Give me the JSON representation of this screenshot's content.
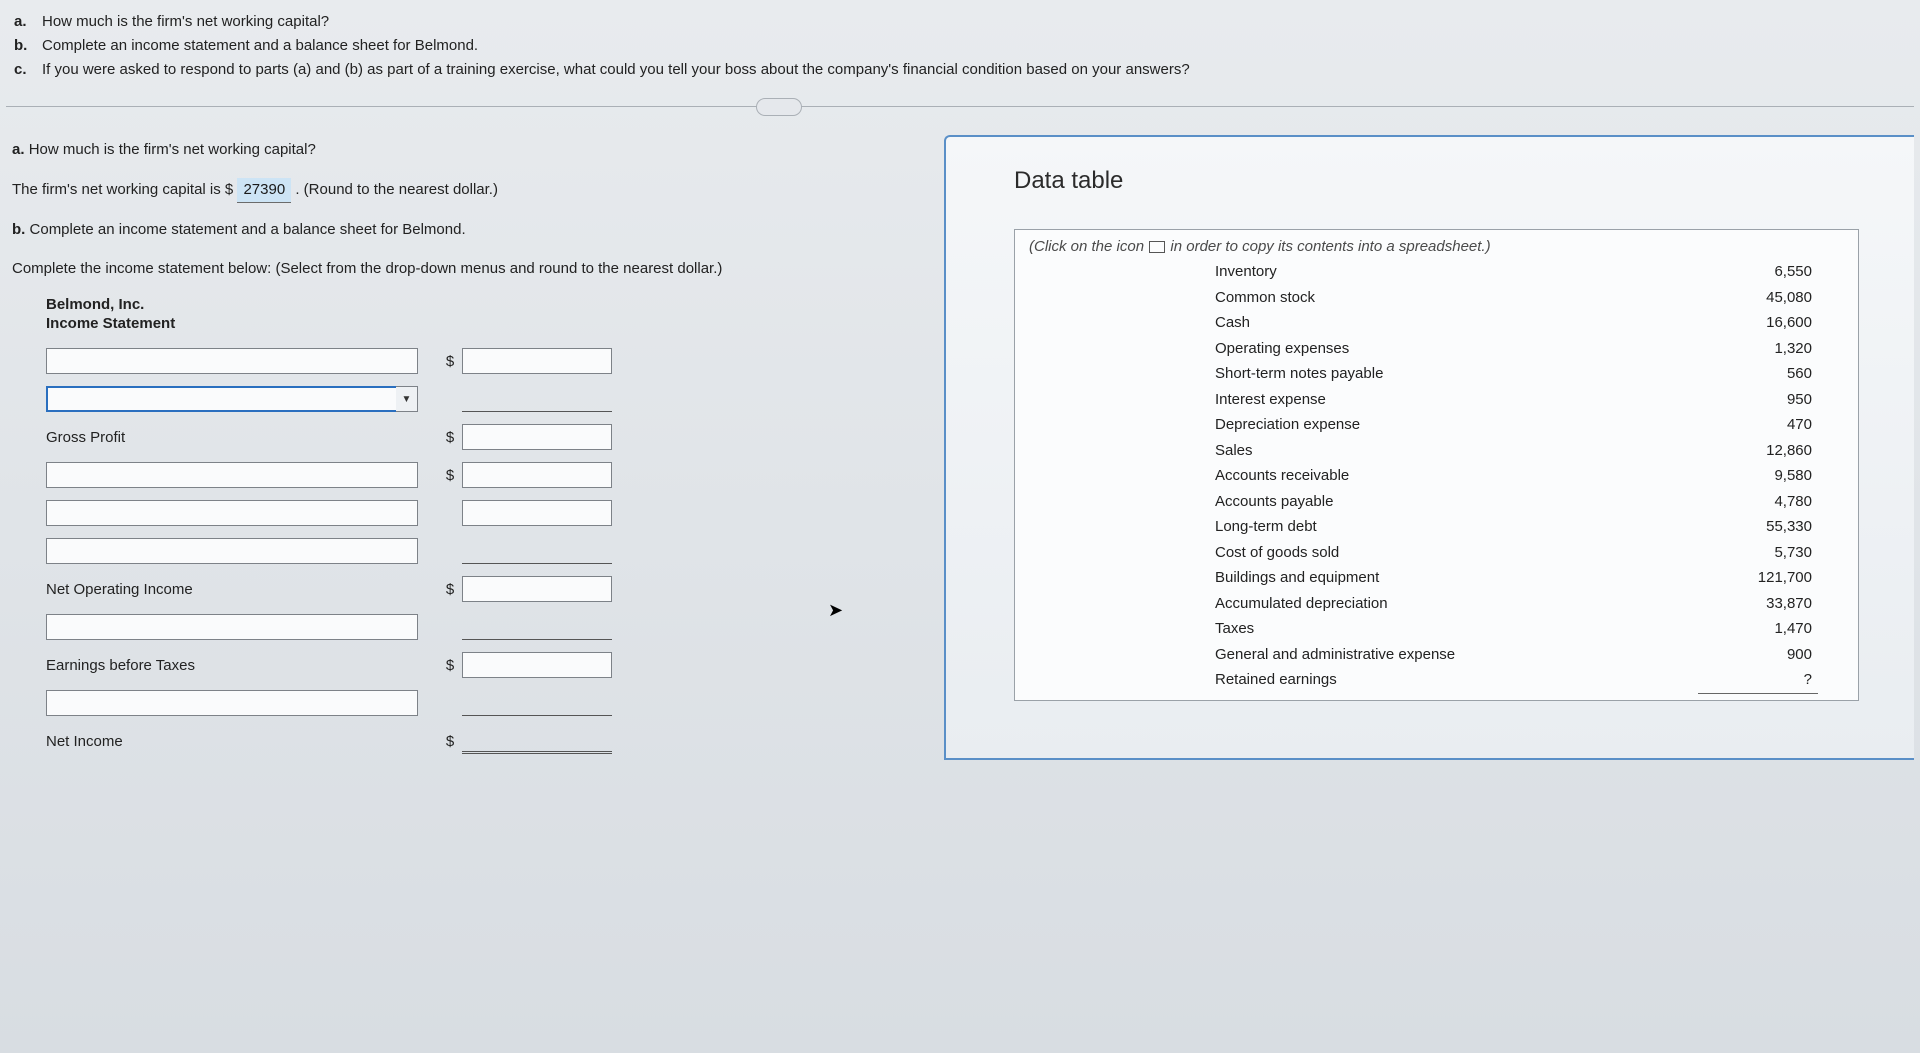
{
  "top_questions": [
    {
      "letter": "a.",
      "text": "How much is the firm's net working capital?"
    },
    {
      "letter": "b.",
      "text": "Complete an income statement and a balance sheet for Belmond."
    },
    {
      "letter": "c.",
      "text": "If you were asked to respond to parts (a) and (b) as part of a training exercise, what could you tell your boss about the company's financial condition based on your answers?"
    }
  ],
  "part_a": {
    "letter": "a.",
    "question": "How much is the firm's net working capital?",
    "answer_prefix": "The firm's net working capital is $",
    "answer_value": "27390",
    "answer_suffix": ".  (Round to the nearest dollar.)"
  },
  "part_b": {
    "letter": "b.",
    "question": "Complete an income statement and a balance sheet for Belmond.",
    "instruction": "Complete the income statement below:  (Select from the drop-down menus and round to the nearest dollar.)"
  },
  "income_statement": {
    "company": "Belmond, Inc.",
    "title": "Income Statement",
    "rows": [
      {
        "kind": "input",
        "dollar": "$",
        "value_style": "box"
      },
      {
        "kind": "dropdown",
        "dollar": "",
        "value_style": "underline",
        "active": true
      },
      {
        "kind": "label",
        "label": "Gross Profit",
        "dollar": "$",
        "value_style": "box"
      },
      {
        "kind": "input",
        "dollar": "$",
        "value_style": "box"
      },
      {
        "kind": "input",
        "dollar": "",
        "value_style": "box"
      },
      {
        "kind": "input",
        "dollar": "",
        "value_style": "underline"
      },
      {
        "kind": "label",
        "label": "Net Operating Income",
        "dollar": "$",
        "value_style": "box"
      },
      {
        "kind": "input",
        "dollar": "",
        "value_style": "underline"
      },
      {
        "kind": "label",
        "label": "Earnings before Taxes",
        "dollar": "$",
        "value_style": "box"
      },
      {
        "kind": "input",
        "dollar": "",
        "value_style": "underline"
      },
      {
        "kind": "label",
        "label": "Net Income",
        "dollar": "$",
        "value_style": "dbl-underline"
      }
    ]
  },
  "data_table": {
    "title": "Data table",
    "hint_before": "(Click on the icon",
    "hint_after": "in order to copy its contents into a spreadsheet.)",
    "rows": [
      {
        "label": "Inventory",
        "value": "6,550"
      },
      {
        "label": "Common stock",
        "value": "45,080"
      },
      {
        "label": "Cash",
        "value": "16,600"
      },
      {
        "label": "Operating expenses",
        "value": "1,320"
      },
      {
        "label": "Short-term notes payable",
        "value": "560"
      },
      {
        "label": "Interest expense",
        "value": "950"
      },
      {
        "label": "Depreciation expense",
        "value": "470"
      },
      {
        "label": "Sales",
        "value": "12,860"
      },
      {
        "label": "Accounts receivable",
        "value": "9,580"
      },
      {
        "label": "Accounts payable",
        "value": "4,780"
      },
      {
        "label": "Long-term debt",
        "value": "55,330"
      },
      {
        "label": "Cost of goods sold",
        "value": "5,730"
      },
      {
        "label": "Buildings and equipment",
        "value": "121,700"
      },
      {
        "label": "Accumulated depreciation",
        "value": "33,870"
      },
      {
        "label": "Taxes",
        "value": "1,470"
      },
      {
        "label": "General and administrative expense",
        "value": "900"
      },
      {
        "label": "Retained earnings",
        "value": "?"
      }
    ]
  },
  "colors": {
    "panel_border": "#5a8fc7",
    "input_highlight": "#cde4f5",
    "text": "#222222",
    "border_gray": "#7d8288"
  }
}
